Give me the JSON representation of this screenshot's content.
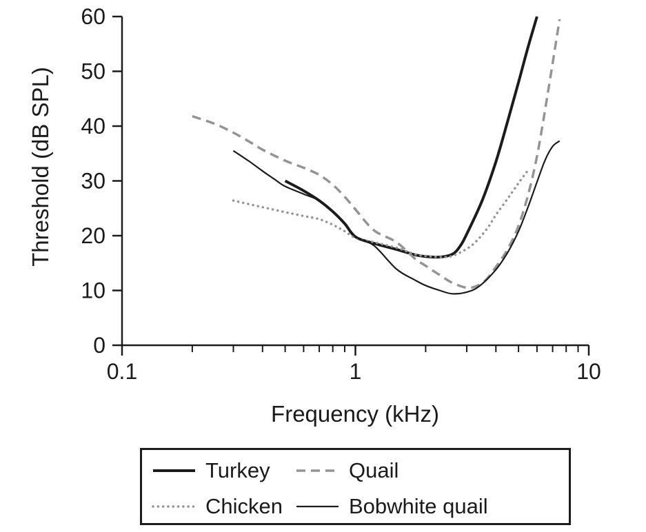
{
  "chart_data": {
    "type": "line",
    "title": "",
    "xlabel": "Frequency (kHz)",
    "ylabel": "Threshold (dB SPL)",
    "grid": false,
    "legend_position": "below-plot, boxed, 2x2",
    "colors": {
      "black": "#1b1b1b",
      "gray": "#949494"
    },
    "axes": {
      "x": {
        "scale": "log",
        "min": 0.1,
        "max": 10,
        "major_ticks": [
          0.1,
          1,
          10
        ],
        "major_tick_labels": [
          "0.1",
          "1",
          "10"
        ],
        "minor_ticks": [
          0.2,
          0.3,
          0.4,
          0.5,
          0.6,
          0.7,
          0.8,
          0.9,
          2,
          3,
          4,
          5,
          6,
          7,
          8,
          9
        ]
      },
      "y": {
        "min": 0,
        "max": 60,
        "ticks": [
          0,
          10,
          20,
          30,
          40,
          50,
          60
        ],
        "tick_labels": [
          "0",
          "10",
          "20",
          "30",
          "40",
          "50",
          "60"
        ]
      }
    },
    "series": [
      {
        "name": "Turkey",
        "style": "solid-thick",
        "color": "#1b1b1b",
        "points": [
          [
            0.5,
            30
          ],
          [
            0.6,
            28.2
          ],
          [
            0.7,
            26.4
          ],
          [
            0.8,
            24.4
          ],
          [
            0.9,
            22.2
          ],
          [
            1.0,
            19.8
          ],
          [
            1.2,
            18.6
          ],
          [
            1.5,
            17.5
          ],
          [
            1.8,
            16.5
          ],
          [
            2.0,
            16.2
          ],
          [
            2.3,
            16.1
          ],
          [
            2.6,
            16.6
          ],
          [
            2.8,
            18.0
          ],
          [
            3.0,
            20.3
          ],
          [
            3.5,
            26.5
          ],
          [
            4.0,
            33.5
          ],
          [
            4.5,
            41.0
          ],
          [
            5.0,
            48.0
          ],
          [
            5.5,
            54.5
          ],
          [
            6.0,
            60.0
          ]
        ]
      },
      {
        "name": "Quail",
        "style": "dashed",
        "color": "#949494",
        "points": [
          [
            0.2,
            41.8
          ],
          [
            0.25,
            40.4
          ],
          [
            0.3,
            38.8
          ],
          [
            0.35,
            37.2
          ],
          [
            0.4,
            35.7
          ],
          [
            0.5,
            33.7
          ],
          [
            0.6,
            32.4
          ],
          [
            0.7,
            31.1
          ],
          [
            0.8,
            29.3
          ],
          [
            0.9,
            27.1
          ],
          [
            1.0,
            24.8
          ],
          [
            1.2,
            21.0
          ],
          [
            1.5,
            18.8
          ],
          [
            1.8,
            15.8
          ],
          [
            2.0,
            14.5
          ],
          [
            2.3,
            12.8
          ],
          [
            2.6,
            11.4
          ],
          [
            3.0,
            10.5
          ],
          [
            3.3,
            10.8
          ],
          [
            3.6,
            11.8
          ],
          [
            4.0,
            14.3
          ],
          [
            4.5,
            17.6
          ],
          [
            5.0,
            21.8
          ],
          [
            5.5,
            27.5
          ],
          [
            6.0,
            34.5
          ],
          [
            6.5,
            43.0
          ],
          [
            7.0,
            51.5
          ],
          [
            7.5,
            59.5
          ]
        ]
      },
      {
        "name": "Chicken",
        "style": "dotted",
        "color": "#949494",
        "points": [
          [
            0.3,
            26.4
          ],
          [
            0.4,
            25.2
          ],
          [
            0.5,
            24.3
          ],
          [
            0.6,
            23.6
          ],
          [
            0.7,
            23.0
          ],
          [
            0.8,
            22.0
          ],
          [
            0.9,
            20.8
          ],
          [
            1.0,
            19.6
          ],
          [
            1.2,
            18.8
          ],
          [
            1.5,
            17.8
          ],
          [
            1.8,
            16.6
          ],
          [
            2.0,
            16.3
          ],
          [
            2.3,
            16.1
          ],
          [
            2.6,
            16.3
          ],
          [
            3.0,
            17.6
          ],
          [
            3.3,
            19.0
          ],
          [
            3.7,
            21.5
          ],
          [
            4.0,
            23.8
          ],
          [
            4.5,
            26.8
          ],
          [
            5.0,
            29.6
          ],
          [
            5.5,
            32.0
          ]
        ]
      },
      {
        "name": "Bobwhite quail",
        "style": "solid-thin",
        "color": "#1b1b1b",
        "points": [
          [
            0.3,
            35.5
          ],
          [
            0.35,
            33.6
          ],
          [
            0.4,
            31.8
          ],
          [
            0.45,
            30.3
          ],
          [
            0.5,
            29.0
          ],
          [
            0.6,
            27.6
          ],
          [
            0.7,
            26.4
          ],
          [
            0.8,
            24.4
          ],
          [
            0.9,
            22.2
          ],
          [
            1.0,
            19.8
          ],
          [
            1.2,
            18.2
          ],
          [
            1.5,
            13.9
          ],
          [
            1.8,
            11.9
          ],
          [
            2.0,
            10.9
          ],
          [
            2.3,
            10.0
          ],
          [
            2.6,
            9.4
          ],
          [
            3.0,
            9.7
          ],
          [
            3.4,
            10.8
          ],
          [
            4.0,
            13.8
          ],
          [
            4.5,
            17.0
          ],
          [
            5.0,
            20.8
          ],
          [
            5.5,
            25.3
          ],
          [
            6.0,
            29.8
          ],
          [
            6.5,
            33.8
          ],
          [
            7.0,
            36.3
          ],
          [
            7.5,
            37.3
          ]
        ]
      }
    ],
    "legend": {
      "entries": [
        {
          "label": "Turkey",
          "series": "Turkey"
        },
        {
          "label": "Quail",
          "series": "Quail"
        },
        {
          "label": "Chicken",
          "series": "Chicken"
        },
        {
          "label": "Bobwhite quail",
          "series": "Bobwhite quail"
        }
      ]
    }
  }
}
